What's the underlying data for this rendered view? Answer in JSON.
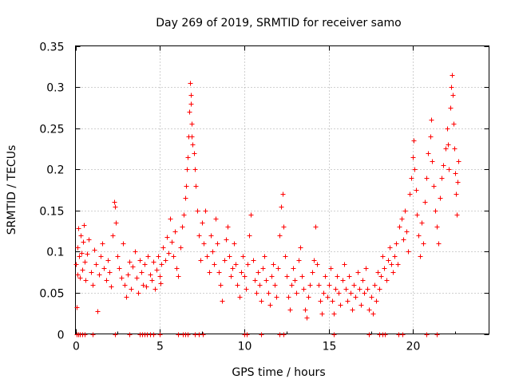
{
  "chart_data": {
    "type": "scatter",
    "title": "Day 269 of 2019, SRMTID for receiver samo",
    "xlabel": "GPS time / hours",
    "ylabel": "SRMTID / TECUs",
    "xlim": [
      0,
      24.5
    ],
    "ylim": [
      0,
      0.35
    ],
    "x_ticks": [
      "0",
      "5",
      "10",
      "15",
      "20"
    ],
    "x_tick_values": [
      0,
      5,
      10,
      15,
      20
    ],
    "y_ticks": [
      "0",
      "0.05",
      "0.1",
      "0.15",
      "0.2",
      "0.25",
      "0.3",
      "0.35"
    ],
    "y_tick_values": [
      0,
      0.05,
      0.1,
      0.15,
      0.2,
      0.25,
      0.3,
      0.35
    ],
    "grid": true,
    "marker": "+",
    "color": "#ff0000",
    "series": [
      {
        "name": "SRMTID",
        "points": [
          [
            0.0,
            0.085
          ],
          [
            0.05,
            0.032
          ],
          [
            0.1,
            0.072
          ],
          [
            0.1,
            0.105
          ],
          [
            0.15,
            0.128
          ],
          [
            0.2,
            0.095
          ],
          [
            0.25,
            0.068
          ],
          [
            0.3,
            0.12
          ],
          [
            0.35,
            0.098
          ],
          [
            0.4,
            0.078
          ],
          [
            0.45,
            0.112
          ],
          [
            0.5,
            0.132
          ],
          [
            0.55,
            0.088
          ],
          [
            0.6,
            0.065
          ],
          [
            0.7,
            0.097
          ],
          [
            0.8,
            0.115
          ],
          [
            0.9,
            0.075
          ],
          [
            1.0,
            0.06
          ],
          [
            1.1,
            0.102
          ],
          [
            1.2,
            0.085
          ],
          [
            1.3,
            0.028
          ],
          [
            1.4,
            0.072
          ],
          [
            1.5,
            0.095
          ],
          [
            1.6,
            0.11
          ],
          [
            1.7,
            0.08
          ],
          [
            1.8,
            0.065
          ],
          [
            1.9,
            0.09
          ],
          [
            2.0,
            0.075
          ],
          [
            2.1,
            0.058
          ],
          [
            2.2,
            0.12
          ],
          [
            2.3,
            0.16
          ],
          [
            2.35,
            0.155
          ],
          [
            2.4,
            0.135
          ],
          [
            2.5,
            0.095
          ],
          [
            2.6,
            0.08
          ],
          [
            2.7,
            0.068
          ],
          [
            2.8,
            0.11
          ],
          [
            2.9,
            0.06
          ],
          [
            3.0,
            0.045
          ],
          [
            3.1,
            0.072
          ],
          [
            3.2,
            0.088
          ],
          [
            3.3,
            0.055
          ],
          [
            3.4,
            0.082
          ],
          [
            3.5,
            0.1
          ],
          [
            3.6,
            0.068
          ],
          [
            3.7,
            0.05
          ],
          [
            3.8,
            0.09
          ],
          [
            3.9,
            0.075
          ],
          [
            4.0,
            0.06
          ],
          [
            4.1,
            0.085
          ],
          [
            4.2,
            0.058
          ],
          [
            4.3,
            0.095
          ],
          [
            4.4,
            0.072
          ],
          [
            4.5,
            0.065
          ],
          [
            4.6,
            0.088
          ],
          [
            4.7,
            0.055
          ],
          [
            4.8,
            0.078
          ],
          [
            4.9,
            0.095
          ],
          [
            5.0,
            0.07
          ],
          [
            5.05,
            0.062
          ],
          [
            5.1,
            0.085
          ],
          [
            5.2,
            0.105
          ],
          [
            5.3,
            0.09
          ],
          [
            5.4,
            0.118
          ],
          [
            5.5,
            0.098
          ],
          [
            5.6,
            0.14
          ],
          [
            5.7,
            0.112
          ],
          [
            5.8,
            0.095
          ],
          [
            5.9,
            0.125
          ],
          [
            6.0,
            0.08
          ],
          [
            6.1,
            0.07
          ],
          [
            6.2,
            0.105
          ],
          [
            6.3,
            0.13
          ],
          [
            6.4,
            0.145
          ],
          [
            6.5,
            0.165
          ],
          [
            6.55,
            0.18
          ],
          [
            6.6,
            0.2
          ],
          [
            6.65,
            0.215
          ],
          [
            6.7,
            0.24
          ],
          [
            6.75,
            0.27
          ],
          [
            6.8,
            0.305
          ],
          [
            6.82,
            0.29
          ],
          [
            6.85,
            0.28
          ],
          [
            6.88,
            0.255
          ],
          [
            6.9,
            0.24
          ],
          [
            6.95,
            0.23
          ],
          [
            7.0,
            0.22
          ],
          [
            7.05,
            0.2
          ],
          [
            7.1,
            0.18
          ],
          [
            7.2,
            0.15
          ],
          [
            7.3,
            0.12
          ],
          [
            7.4,
            0.09
          ],
          [
            7.5,
            0.135
          ],
          [
            7.6,
            0.11
          ],
          [
            7.7,
            0.15
          ],
          [
            7.8,
            0.095
          ],
          [
            7.9,
            0.075
          ],
          [
            8.0,
            0.12
          ],
          [
            8.1,
            0.1
          ],
          [
            8.2,
            0.085
          ],
          [
            8.3,
            0.14
          ],
          [
            8.4,
            0.11
          ],
          [
            8.5,
            0.075
          ],
          [
            8.6,
            0.06
          ],
          [
            8.7,
            0.04
          ],
          [
            8.8,
            0.09
          ],
          [
            8.9,
            0.115
          ],
          [
            9.0,
            0.13
          ],
          [
            9.1,
            0.095
          ],
          [
            9.2,
            0.07
          ],
          [
            9.3,
            0.08
          ],
          [
            9.4,
            0.11
          ],
          [
            9.5,
            0.085
          ],
          [
            9.6,
            0.06
          ],
          [
            9.7,
            0.045
          ],
          [
            9.8,
            0.075
          ],
          [
            9.9,
            0.095
          ],
          [
            10.0,
            0.07
          ],
          [
            10.1,
            0.055
          ],
          [
            10.2,
            0.085
          ],
          [
            10.3,
            0.12
          ],
          [
            10.4,
            0.145
          ],
          [
            10.5,
            0.09
          ],
          [
            10.6,
            0.065
          ],
          [
            10.7,
            0.05
          ],
          [
            10.8,
            0.075
          ],
          [
            10.9,
            0.06
          ],
          [
            11.0,
            0.04
          ],
          [
            11.1,
            0.08
          ],
          [
            11.2,
            0.095
          ],
          [
            11.3,
            0.065
          ],
          [
            11.4,
            0.05
          ],
          [
            11.5,
            0.035
          ],
          [
            11.6,
            0.07
          ],
          [
            11.7,
            0.085
          ],
          [
            11.8,
            0.06
          ],
          [
            11.9,
            0.045
          ],
          [
            12.0,
            0.08
          ],
          [
            12.1,
            0.12
          ],
          [
            12.2,
            0.155
          ],
          [
            12.25,
            0.17
          ],
          [
            12.3,
            0.13
          ],
          [
            12.4,
            0.095
          ],
          [
            12.5,
            0.07
          ],
          [
            12.6,
            0.045
          ],
          [
            12.7,
            0.03
          ],
          [
            12.8,
            0.06
          ],
          [
            12.9,
            0.08
          ],
          [
            13.0,
            0.065
          ],
          [
            13.1,
            0.05
          ],
          [
            13.2,
            0.09
          ],
          [
            13.3,
            0.105
          ],
          [
            13.4,
            0.07
          ],
          [
            13.5,
            0.055
          ],
          [
            13.6,
            0.03
          ],
          [
            13.7,
            0.02
          ],
          [
            13.8,
            0.045
          ],
          [
            13.9,
            0.06
          ],
          [
            14.0,
            0.075
          ],
          [
            14.1,
            0.09
          ],
          [
            14.2,
            0.13
          ],
          [
            14.3,
            0.085
          ],
          [
            14.4,
            0.06
          ],
          [
            14.5,
            0.04
          ],
          [
            14.6,
            0.025
          ],
          [
            14.7,
            0.05
          ],
          [
            14.8,
            0.07
          ],
          [
            14.9,
            0.045
          ],
          [
            15.0,
            0.06
          ],
          [
            15.1,
            0.08
          ],
          [
            15.2,
            0.04
          ],
          [
            15.3,
            0.025
          ],
          [
            15.4,
            0.055
          ],
          [
            15.5,
            0.07
          ],
          [
            15.6,
            0.05
          ],
          [
            15.7,
            0.035
          ],
          [
            15.8,
            0.065
          ],
          [
            15.9,
            0.085
          ],
          [
            16.0,
            0.055
          ],
          [
            16.1,
            0.04
          ],
          [
            16.2,
            0.07
          ],
          [
            16.3,
            0.05
          ],
          [
            16.4,
            0.03
          ],
          [
            16.5,
            0.06
          ],
          [
            16.6,
            0.045
          ],
          [
            16.7,
            0.075
          ],
          [
            16.8,
            0.055
          ],
          [
            16.9,
            0.035
          ],
          [
            17.0,
            0.065
          ],
          [
            17.1,
            0.05
          ],
          [
            17.2,
            0.08
          ],
          [
            17.3,
            0.055
          ],
          [
            17.4,
            0.03
          ],
          [
            17.5,
            0.045
          ],
          [
            17.6,
            0.025
          ],
          [
            17.7,
            0.06
          ],
          [
            17.8,
            0.04
          ],
          [
            17.9,
            0.075
          ],
          [
            18.0,
            0.055
          ],
          [
            18.1,
            0.07
          ],
          [
            18.2,
            0.095
          ],
          [
            18.3,
            0.08
          ],
          [
            18.4,
            0.065
          ],
          [
            18.5,
            0.09
          ],
          [
            18.6,
            0.105
          ],
          [
            18.7,
            0.085
          ],
          [
            18.8,
            0.075
          ],
          [
            18.9,
            0.095
          ],
          [
            19.0,
            0.11
          ],
          [
            19.1,
            0.085
          ],
          [
            19.2,
            0.13
          ],
          [
            19.3,
            0.14
          ],
          [
            19.4,
            0.115
          ],
          [
            19.5,
            0.15
          ],
          [
            19.6,
            0.125
          ],
          [
            19.7,
            0.1
          ],
          [
            19.8,
            0.17
          ],
          [
            19.9,
            0.19
          ],
          [
            20.0,
            0.215
          ],
          [
            20.05,
            0.235
          ],
          [
            20.1,
            0.2
          ],
          [
            20.15,
            0.175
          ],
          [
            20.2,
            0.145
          ],
          [
            20.3,
            0.12
          ],
          [
            20.4,
            0.095
          ],
          [
            20.5,
            0.135
          ],
          [
            20.6,
            0.11
          ],
          [
            20.7,
            0.16
          ],
          [
            20.8,
            0.19
          ],
          [
            20.9,
            0.22
          ],
          [
            21.0,
            0.24
          ],
          [
            21.05,
            0.26
          ],
          [
            21.1,
            0.21
          ],
          [
            21.2,
            0.18
          ],
          [
            21.3,
            0.15
          ],
          [
            21.4,
            0.13
          ],
          [
            21.5,
            0.11
          ],
          [
            21.6,
            0.165
          ],
          [
            21.7,
            0.19
          ],
          [
            21.8,
            0.205
          ],
          [
            21.9,
            0.225
          ],
          [
            22.0,
            0.25
          ],
          [
            22.05,
            0.23
          ],
          [
            22.1,
            0.2
          ],
          [
            22.2,
            0.275
          ],
          [
            22.25,
            0.3
          ],
          [
            22.3,
            0.315
          ],
          [
            22.35,
            0.29
          ],
          [
            22.4,
            0.255
          ],
          [
            22.45,
            0.225
          ],
          [
            22.5,
            0.195
          ],
          [
            22.55,
            0.17
          ],
          [
            22.6,
            0.145
          ],
          [
            22.65,
            0.185
          ],
          [
            22.7,
            0.21
          ]
        ],
        "zeros_x": [
          0.05,
          0.15,
          0.25,
          0.4,
          0.55,
          1.0,
          2.35,
          3.2,
          3.8,
          3.95,
          4.1,
          4.25,
          4.4,
          4.6,
          5.0,
          6.1,
          6.35,
          6.5,
          6.65,
          7.05,
          7.3,
          7.55,
          10.0,
          10.15,
          11.0,
          12.1,
          12.3,
          15.3,
          17.4,
          18.0,
          18.2,
          18.35,
          19.15,
          19.35,
          20.8,
          21.4
        ]
      }
    ]
  }
}
